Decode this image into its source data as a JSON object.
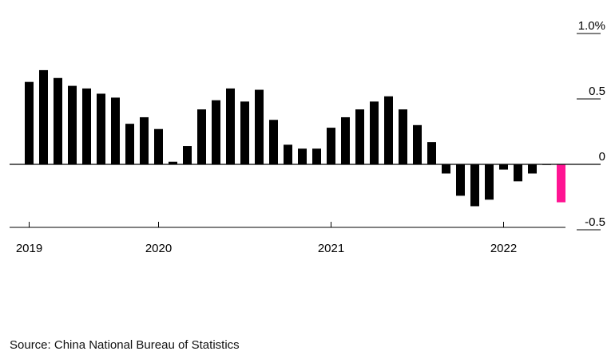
{
  "chart_data": {
    "type": "bar",
    "title": "",
    "xlabel": "",
    "ylabel": "",
    "ylim": [
      -0.5,
      1.0
    ],
    "y_unit": "%",
    "y_ticks": [
      {
        "value": 1.0,
        "label": "1.0%"
      },
      {
        "value": 0.5,
        "label": "0.5"
      },
      {
        "value": 0,
        "label": "0"
      },
      {
        "value": -0.5,
        "label": "-0.5"
      }
    ],
    "x_ticks": [
      {
        "label": "2019",
        "index": 0
      },
      {
        "label": "2020",
        "index": 9
      },
      {
        "label": "2021",
        "index": 21
      },
      {
        "label": "2022",
        "index": 33
      }
    ],
    "bar_color": "#000000",
    "highlight_color": "#ff1493",
    "highlight_index": 37,
    "values": [
      0.63,
      0.72,
      0.66,
      0.6,
      0.58,
      0.54,
      0.51,
      0.31,
      0.36,
      0.27,
      0.02,
      0.14,
      0.42,
      0.49,
      0.58,
      0.48,
      0.57,
      0.34,
      0.15,
      0.12,
      0.12,
      0.28,
      0.36,
      0.42,
      0.48,
      0.52,
      0.42,
      0.3,
      0.17,
      -0.07,
      -0.24,
      -0.32,
      -0.27,
      -0.04,
      -0.13,
      -0.07,
      0.0,
      -0.29
    ],
    "grid": false
  },
  "source": "Source: China National Bureau of Statistics"
}
